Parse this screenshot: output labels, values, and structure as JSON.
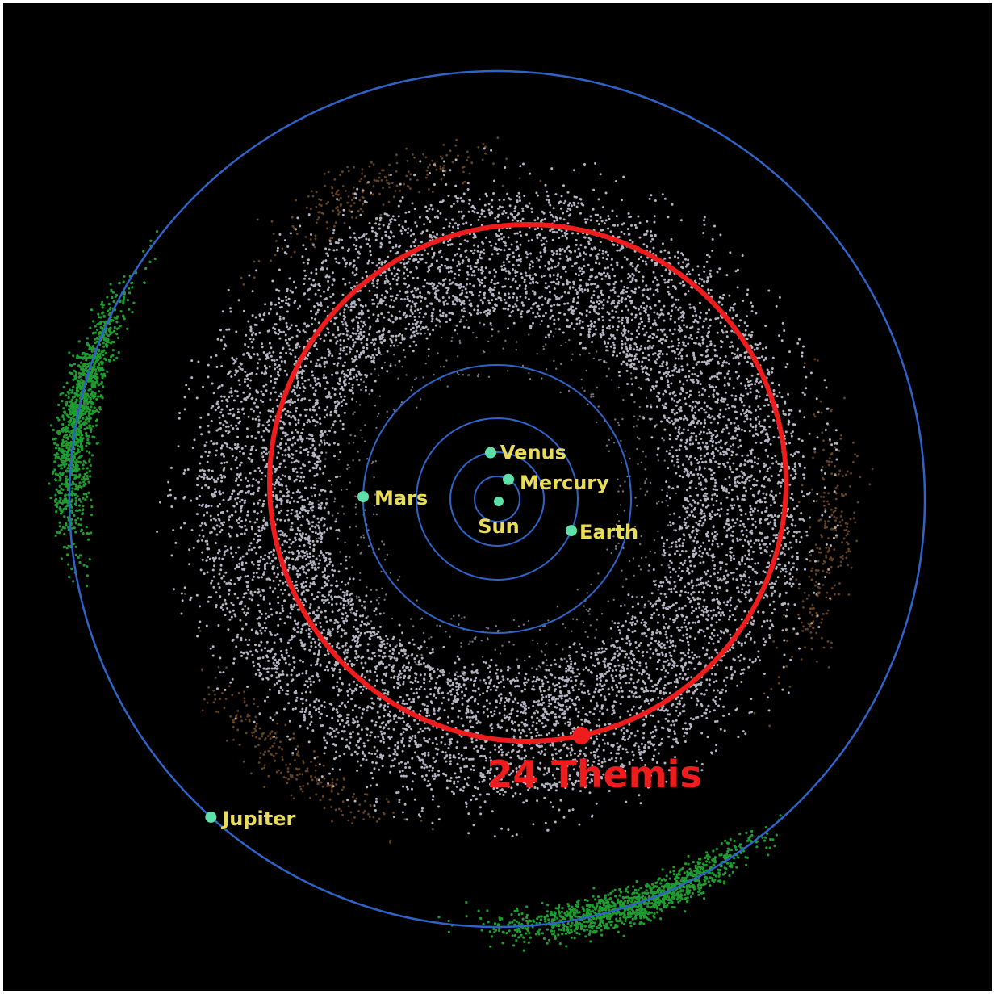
{
  "colors": {
    "background": "#000000",
    "orbit": "#2f63c8",
    "highlight": "#ee1c1c",
    "planet_dot": "#5fe0a8",
    "planet_label": "#e8dc5a",
    "main_belt": "#d4d4e6",
    "trojans": "#28d040",
    "hildas": "#b8783c"
  },
  "sun": {
    "label": "Sun"
  },
  "planets": [
    {
      "id": "mercury",
      "label": "Mercury",
      "orbit_au": 0.39,
      "angle_deg": 60
    },
    {
      "id": "venus",
      "label": "Venus",
      "orbit_au": 0.72,
      "angle_deg": 98
    },
    {
      "id": "earth",
      "label": "Earth",
      "orbit_au": 1.0,
      "angle_deg": -23
    },
    {
      "id": "mars",
      "label": "Mars",
      "orbit_au": 1.52,
      "angle_deg": 179
    },
    {
      "id": "jupiter",
      "label": "Jupiter",
      "orbit_au": 5.2,
      "angle_deg": 228
    }
  ],
  "highlight": {
    "label": "24 Themis",
    "semi_major_axis_au": 3.13,
    "angle_deg": -78
  },
  "populations": [
    {
      "id": "main-belt",
      "color_key": "main_belt"
    },
    {
      "id": "hilda-group",
      "color_key": "hildas"
    },
    {
      "id": "jupiter-trojans",
      "color_key": "trojans"
    }
  ]
}
